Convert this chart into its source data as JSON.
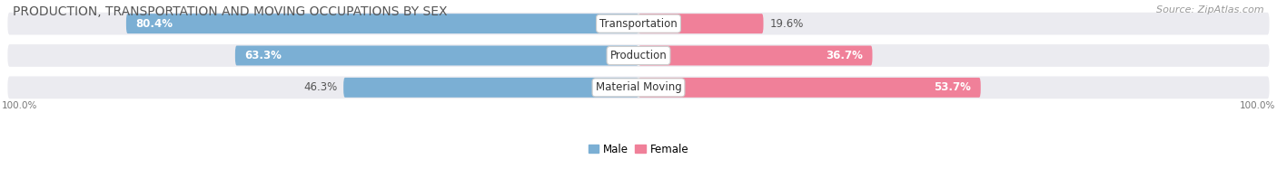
{
  "title": "PRODUCTION, TRANSPORTATION AND MOVING OCCUPATIONS BY SEX",
  "source": "Source: ZipAtlas.com",
  "categories": [
    "Transportation",
    "Production",
    "Material Moving"
  ],
  "male_pct": [
    80.4,
    63.3,
    46.3
  ],
  "female_pct": [
    19.6,
    36.7,
    53.7
  ],
  "male_color": "#7bafd4",
  "female_color": "#f08099",
  "male_label": "Male",
  "female_label": "Female",
  "bar_bg_color": "#ebebf0",
  "title_fontsize": 10,
  "source_fontsize": 8,
  "label_fontsize": 8.5,
  "pct_fontsize": 8.5,
  "cat_fontsize": 8.5,
  "axis_label": "100.0%"
}
